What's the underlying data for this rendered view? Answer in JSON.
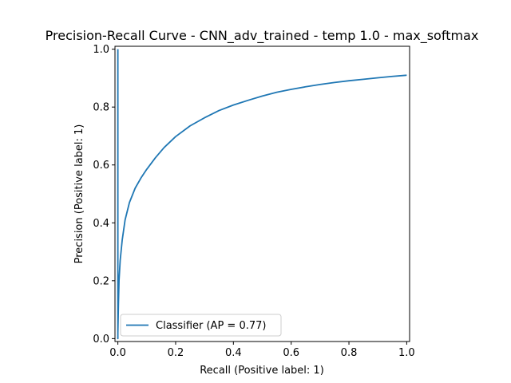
{
  "chart_data": {
    "type": "line",
    "title": "Precision-Recall Curve - CNN_adv_trained - temp 1.0 - max_softmax",
    "xlabel": "Recall (Positive label: 1)",
    "ylabel": "Precision (Positive label: 1)",
    "xlim": [
      -0.01,
      1.01
    ],
    "ylim": [
      -0.01,
      1.01
    ],
    "xticks": [
      0.0,
      0.2,
      0.4,
      0.6,
      0.8,
      1.0
    ],
    "xtick_labels": [
      "0.0",
      "0.2",
      "0.4",
      "0.6",
      "0.8",
      "1.0"
    ],
    "yticks": [
      0.0,
      0.2,
      0.4,
      0.6,
      0.8,
      1.0
    ],
    "ytick_labels": [
      "0.0",
      "0.2",
      "0.4",
      "0.6",
      "0.8",
      "1.0"
    ],
    "grid": false,
    "legend_position": "lower-left",
    "series": [
      {
        "name": "Classifier (AP = 0.77)",
        "color": "#1f77b4",
        "x": [
          0.0,
          0.0,
          0.0,
          0.0,
          0.0,
          0.002,
          0.004,
          0.008,
          0.015,
          0.025,
          0.04,
          0.06,
          0.08,
          0.1,
          0.13,
          0.16,
          0.2,
          0.25,
          0.3,
          0.35,
          0.4,
          0.45,
          0.5,
          0.55,
          0.6,
          0.65,
          0.7,
          0.75,
          0.8,
          0.85,
          0.9,
          0.95,
          1.0
        ],
        "y": [
          1.0,
          0.0,
          0.5,
          0.05,
          0.02,
          0.12,
          0.2,
          0.27,
          0.34,
          0.41,
          0.47,
          0.52,
          0.555,
          0.585,
          0.625,
          0.66,
          0.698,
          0.735,
          0.763,
          0.788,
          0.807,
          0.823,
          0.838,
          0.851,
          0.861,
          0.87,
          0.878,
          0.885,
          0.891,
          0.896,
          0.901,
          0.906,
          0.91
        ]
      }
    ]
  }
}
